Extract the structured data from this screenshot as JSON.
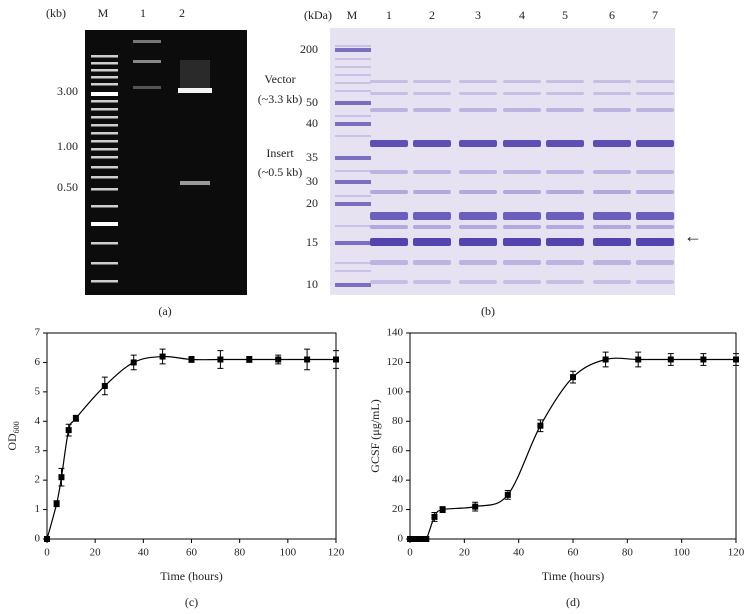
{
  "gel_a": {
    "unit": "(kb)",
    "lanes": [
      "M",
      "1",
      "2"
    ],
    "markers": [
      "3.00",
      "1.00",
      "0.50"
    ],
    "annotations": [
      {
        "label": "Vector",
        "sub": "(~3.3 kb)"
      },
      {
        "label": "Insert",
        "sub": "(~0.5 kb)"
      }
    ],
    "caption": "(a)"
  },
  "gel_b": {
    "unit": "(kDa)",
    "lanes": [
      "M",
      "1",
      "2",
      "3",
      "4",
      "5",
      "6",
      "7"
    ],
    "markers": [
      "200",
      "50",
      "40",
      "35",
      "30",
      "20",
      "15",
      "10"
    ],
    "arrow": "←",
    "caption": "(b)"
  },
  "chart_data": [
    {
      "type": "line",
      "caption": "(c)",
      "xlabel": "Time (hours)",
      "ylabel": {
        "text": "OD",
        "subscript": "600"
      },
      "x": [
        0,
        4,
        6,
        9,
        12,
        24,
        36,
        48,
        60,
        72,
        84,
        96,
        108,
        120
      ],
      "values": [
        0,
        1.2,
        2.1,
        3.7,
        4.1,
        5.2,
        6.0,
        6.2,
        6.1,
        6.1,
        6.1,
        6.1,
        6.1,
        6.1
      ],
      "errors": [
        0,
        0.1,
        0.3,
        0.2,
        0.1,
        0.3,
        0.25,
        0.25,
        0.1,
        0.3,
        0.1,
        0.15,
        0.35,
        0.3
      ],
      "color": "#000000",
      "xlim": [
        0,
        120
      ],
      "xticks": [
        0,
        20,
        40,
        60,
        80,
        100,
        120
      ],
      "ylim": [
        0,
        7
      ],
      "yticks": [
        0,
        1,
        2,
        3,
        4,
        5,
        6,
        7
      ]
    },
    {
      "type": "line",
      "caption": "(d)",
      "xlabel": "Time (hours)",
      "ylabel": {
        "text": "GCSF (μg/mL)"
      },
      "x": [
        0,
        2,
        4,
        6,
        9,
        12,
        24,
        36,
        48,
        60,
        72,
        84,
        96,
        108,
        120
      ],
      "values": [
        0,
        0,
        0,
        0,
        15,
        20,
        22,
        30,
        77,
        110,
        122,
        122,
        122,
        122,
        122
      ],
      "errors": [
        0,
        0,
        0,
        0,
        3,
        2,
        3,
        3,
        4,
        4,
        5,
        5,
        4,
        4,
        4
      ],
      "color": "#000000",
      "xlim": [
        0,
        120
      ],
      "xticks": [
        0,
        20,
        40,
        60,
        80,
        100,
        120
      ],
      "ylim": [
        0,
        140
      ],
      "yticks": [
        0,
        20,
        40,
        60,
        80,
        100,
        120,
        140
      ]
    }
  ]
}
